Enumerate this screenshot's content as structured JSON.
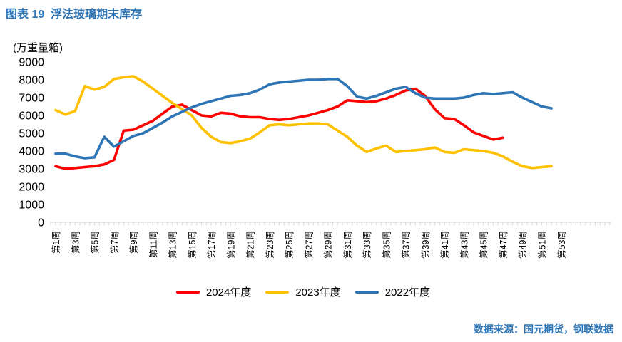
{
  "title": "图表 19  浮法玻璃期末库存",
  "unit_label": "(万重量箱)",
  "source_note": "数据来源：国元期货，钢联数据",
  "colors": {
    "title_blue": "#2E74B5",
    "axis_gray": "#D9D9D9",
    "label_black": "#000000",
    "series_red": "#FF0000",
    "series_yellow": "#FFC000",
    "series_blue": "#2E75B6"
  },
  "chart_data": {
    "type": "line",
    "title": "浮法玻璃期末库存",
    "y_unit": "万重量箱",
    "ylim": [
      0,
      9000
    ],
    "y_tick_step": 1000,
    "y_ticks": [
      0,
      1000,
      2000,
      3000,
      4000,
      5000,
      6000,
      7000,
      8000,
      9000
    ],
    "x_tick_labels": [
      "第1周",
      "第3周",
      "第5周",
      "第7周",
      "第9周",
      "第11周",
      "第13周",
      "第15周",
      "第17周",
      "第19周",
      "第21周",
      "第23周",
      "第25周",
      "第27周",
      "第29周",
      "第31周",
      "第33周",
      "第35周",
      "第37周",
      "第39周",
      "第41周",
      "第43周",
      "第45周",
      "第47周",
      "第49周",
      "第51周",
      "第53周"
    ],
    "weeks_axis_max": 53,
    "grid": false,
    "legend_position": "bottom",
    "series": [
      {
        "name": "2024年度",
        "color": "#FF0000",
        "start_week": 1,
        "values": [
          3150,
          3000,
          3050,
          3100,
          3150,
          3250,
          3500,
          5150,
          5200,
          5450,
          5700,
          6100,
          6500,
          6600,
          6300,
          6000,
          5950,
          6150,
          6100,
          5950,
          5900,
          5900,
          5800,
          5750,
          5800,
          5900,
          6000,
          6150,
          6300,
          6500,
          6850,
          6800,
          6750,
          6800,
          6950,
          7150,
          7400,
          7500,
          7100,
          6350,
          5850,
          5800,
          5450,
          5050,
          4850,
          4650,
          4750
        ]
      },
      {
        "name": "2023年度",
        "color": "#FFC000",
        "start_week": 1,
        "values": [
          6300,
          6050,
          6250,
          7650,
          7450,
          7600,
          8050,
          8150,
          8200,
          7900,
          7500,
          7100,
          6700,
          6350,
          6000,
          5300,
          4800,
          4500,
          4450,
          4550,
          4700,
          5050,
          5450,
          5500,
          5450,
          5500,
          5550,
          5550,
          5500,
          5150,
          4800,
          4300,
          3950,
          4150,
          4300,
          3950,
          4000,
          4050,
          4100,
          4200,
          3950,
          3900,
          4100,
          4050,
          4000,
          3900,
          3700,
          3400,
          3150,
          3050,
          3100,
          3150
        ]
      },
      {
        "name": "2022年度",
        "color": "#2E75B6",
        "start_week": 1,
        "values": [
          3850,
          3850,
          3700,
          3600,
          3650,
          4800,
          4250,
          4550,
          4850,
          5000,
          5300,
          5600,
          5950,
          6200,
          6450,
          6650,
          6800,
          6950,
          7100,
          7150,
          7250,
          7450,
          7750,
          7850,
          7900,
          7950,
          8000,
          8000,
          8050,
          8050,
          7650,
          7050,
          6950,
          7100,
          7300,
          7500,
          7600,
          7250,
          7000,
          6950,
          6950,
          6950,
          7000,
          7150,
          7250,
          7200,
          7250,
          7300,
          7000,
          6750,
          6500,
          6400
        ]
      }
    ]
  }
}
